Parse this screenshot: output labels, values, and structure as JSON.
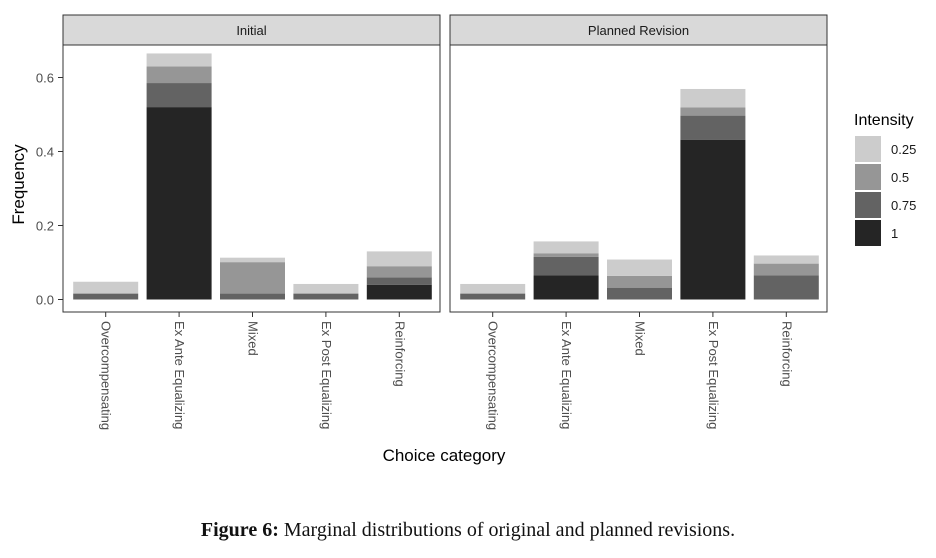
{
  "chart_data": {
    "type": "bar",
    "stacked": true,
    "xlabel": "Choice category",
    "ylabel": "Frequency",
    "ylim": [
      0,
      0.69
    ],
    "yticks": [
      0.0,
      0.2,
      0.4,
      0.6
    ],
    "ytick_labels": [
      "0.0",
      "0.2",
      "0.4",
      "0.6"
    ],
    "grid": false,
    "legend_title": "Intensity",
    "legend_position": "right",
    "legend": [
      {
        "label": "0.25",
        "color": "#cccccc"
      },
      {
        "label": "0.5",
        "color": "#969696"
      },
      {
        "label": "0.75",
        "color": "#636363"
      },
      {
        "label": "1",
        "color": "#252525"
      }
    ],
    "panels": [
      {
        "title": "Initial",
        "categories": [
          "Overcompensating",
          "Ex Ante Equalizing",
          "Mixed",
          "Ex Post Equalizing",
          "Reinforcing"
        ],
        "series": [
          {
            "name": "1",
            "values": [
              0.0,
              0.52,
              0.0,
              0.0,
              0.04
            ]
          },
          {
            "name": "0.75",
            "values": [
              0.016,
              0.065,
              0.016,
              0.016,
              0.02
            ]
          },
          {
            "name": "0.5",
            "values": [
              0.0,
              0.045,
              0.085,
              0.0,
              0.03
            ]
          },
          {
            "name": "0.25",
            "values": [
              0.032,
              0.035,
              0.012,
              0.026,
              0.04
            ]
          }
        ]
      },
      {
        "title": "Planned Revision",
        "categories": [
          "Overcompensating",
          "Ex Ante Equalizing",
          "Mixed",
          "Ex Post Equalizing",
          "Reinforcing"
        ],
        "series": [
          {
            "name": "1",
            "values": [
              0.0,
              0.065,
              0.0,
              0.432,
              0.0
            ]
          },
          {
            "name": "0.75",
            "values": [
              0.016,
              0.05,
              0.032,
              0.065,
              0.065
            ]
          },
          {
            "name": "0.5",
            "values": [
              0.0,
              0.01,
              0.032,
              0.022,
              0.032
            ]
          },
          {
            "name": "0.25",
            "values": [
              0.026,
              0.032,
              0.044,
              0.05,
              0.022
            ]
          }
        ]
      }
    ]
  },
  "caption": {
    "label": "Figure 6:",
    "text": "Marginal distributions of original and planned revisions."
  }
}
